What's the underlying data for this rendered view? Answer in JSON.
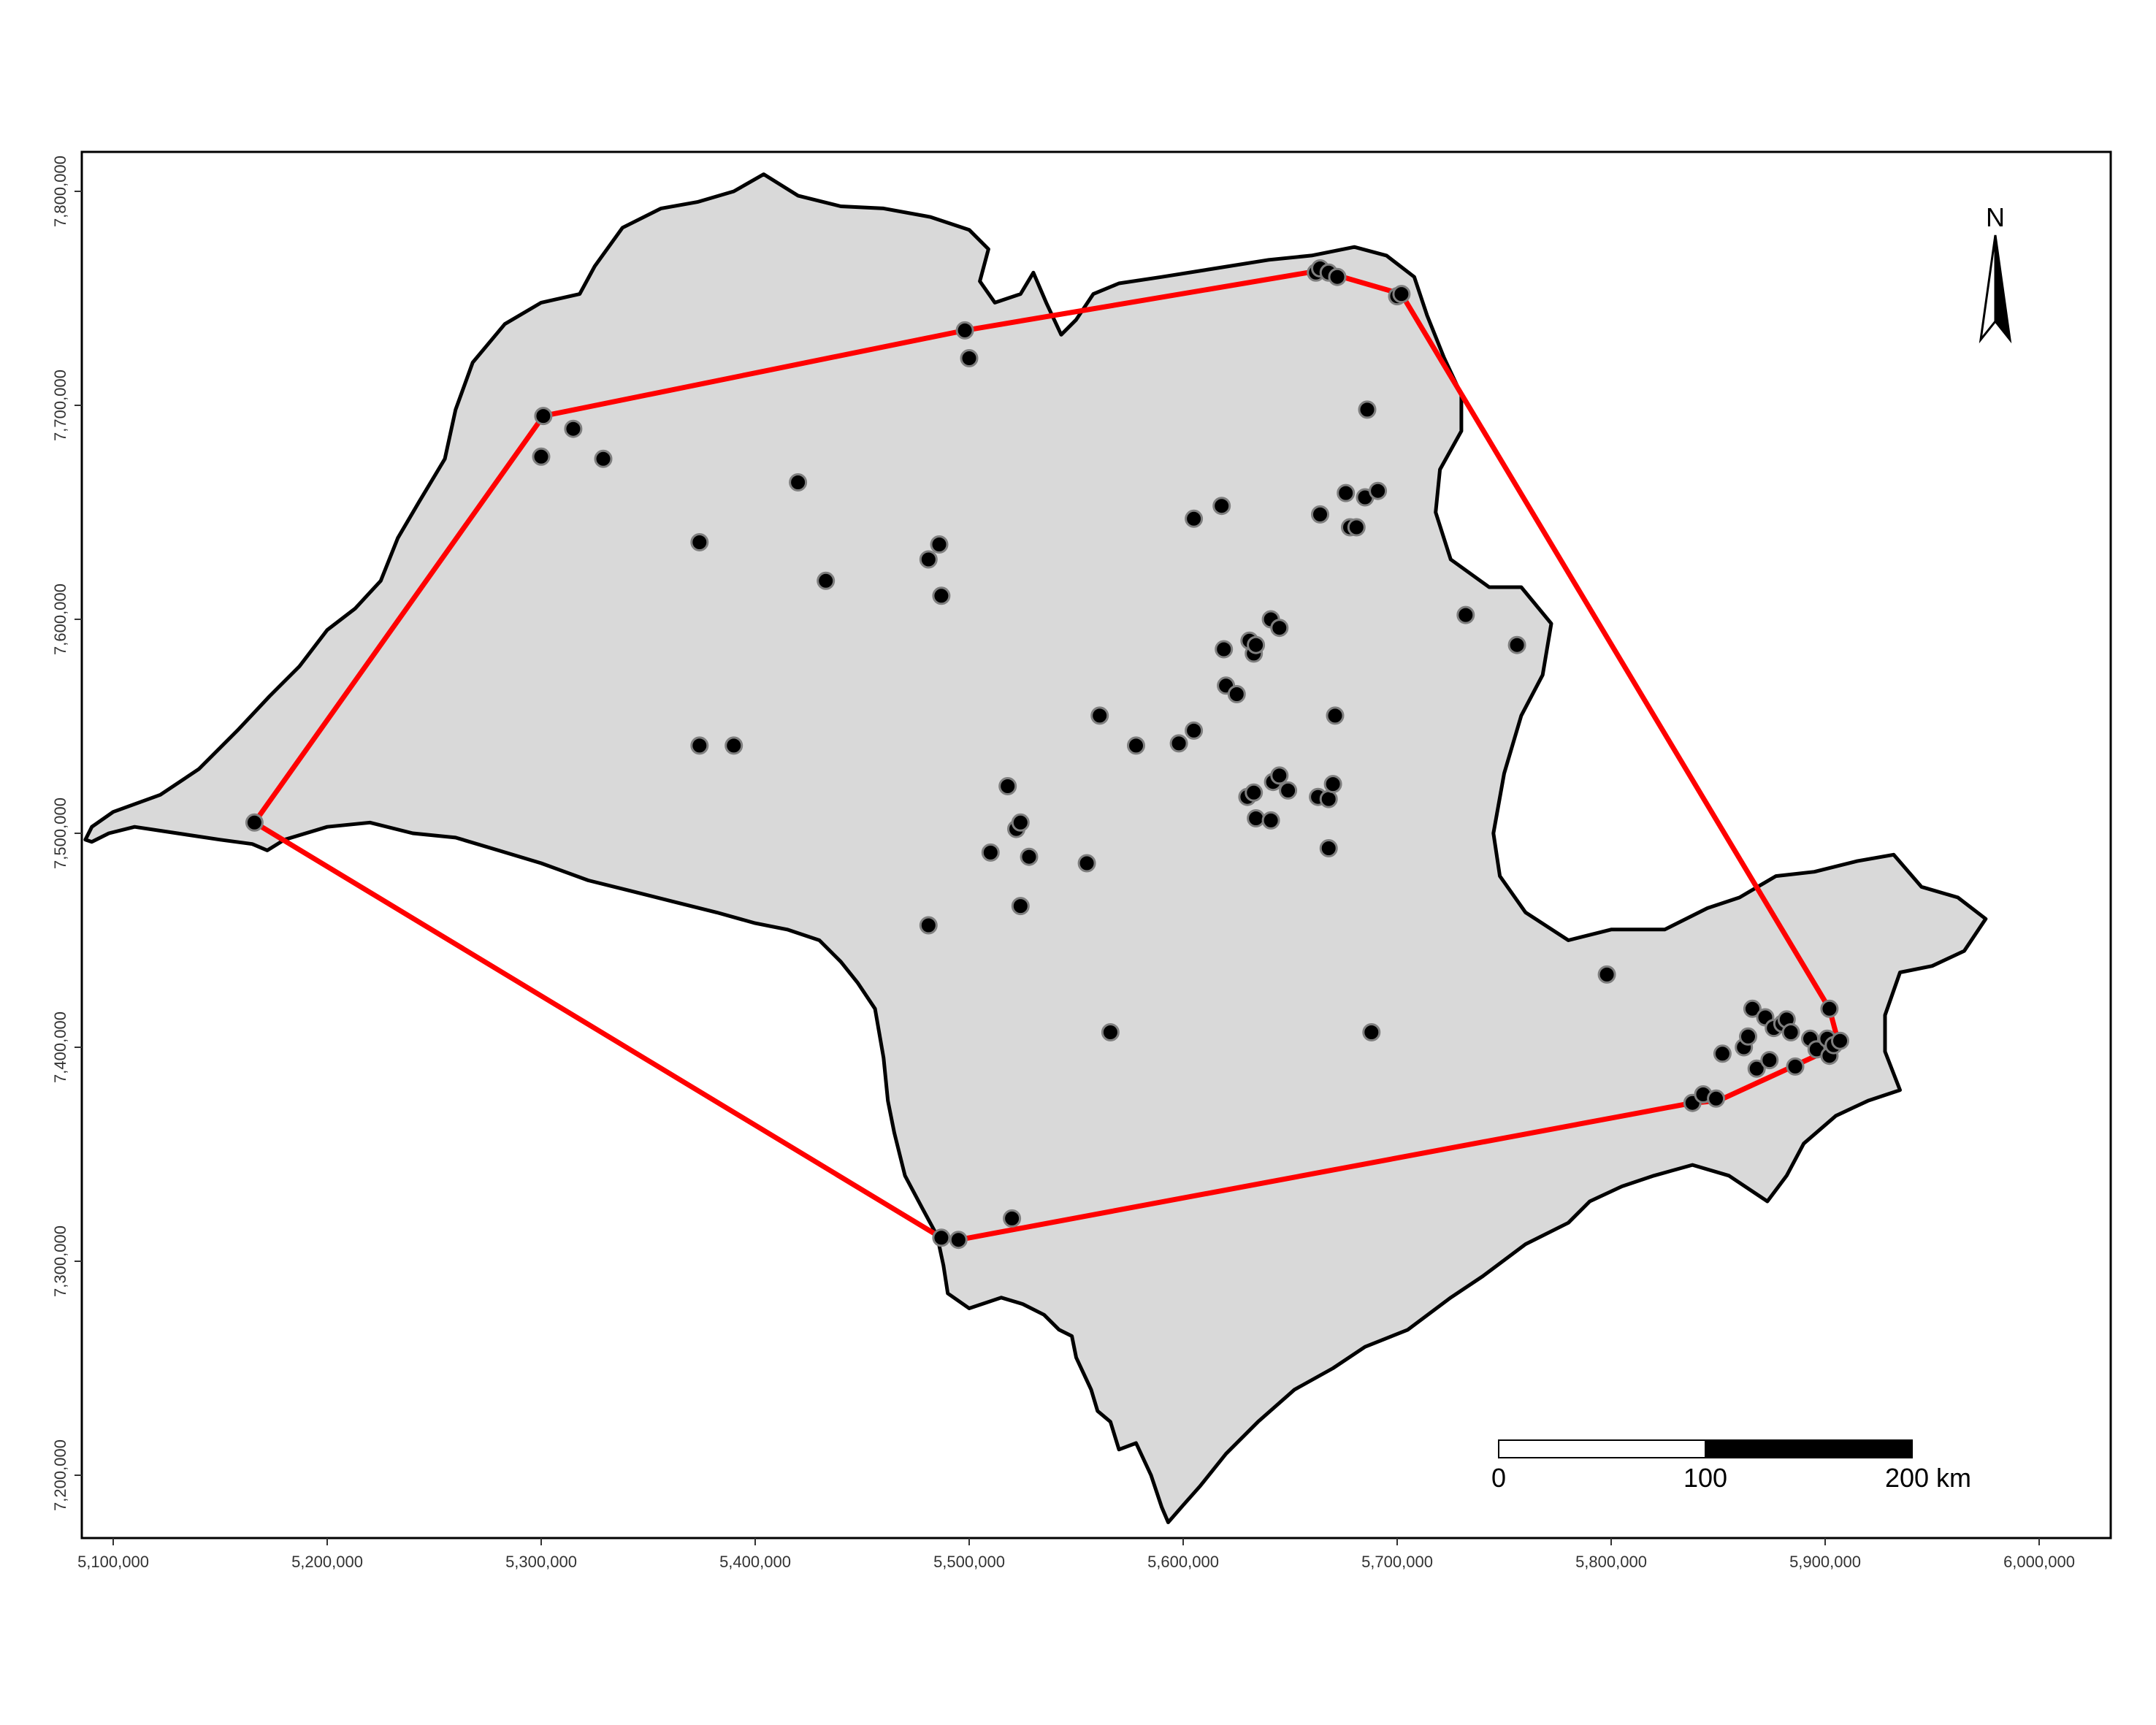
{
  "map": {
    "type": "scatter-map",
    "x_axis": {
      "ticks": [
        5100000,
        5200000,
        5300000,
        5400000,
        5500000,
        5600000,
        5700000,
        5800000,
        5900000,
        6000000
      ],
      "tick_labels": [
        "5,100,000",
        "5,200,000",
        "5,300,000",
        "5,400,000",
        "5,500,000",
        "5,600,000",
        "5,700,000",
        "5,800,000",
        "5,900,000",
        "6,000,000"
      ],
      "range": [
        5080000,
        6025000
      ]
    },
    "y_axis": {
      "ticks": [
        7200000,
        7300000,
        7400000,
        7500000,
        7600000,
        7700000,
        7800000
      ],
      "tick_labels": [
        "7,200,000",
        "7,300,000",
        "7,400,000",
        "7,500,000",
        "7,600,000",
        "7,700,000",
        "7,800,000"
      ],
      "range": [
        7168000,
        7820000
      ]
    },
    "colors": {
      "land_fill": "#d9d9d9",
      "outline": "#000000",
      "hull": "#ff0000",
      "point_fill": "#000000",
      "point_stroke": "#7f7f7f"
    },
    "region_outline": [
      [
        5087000,
        7497000
      ],
      [
        5090000,
        7503000
      ],
      [
        5100000,
        7510000
      ],
      [
        5122000,
        7518000
      ],
      [
        5140000,
        7530000
      ],
      [
        5158000,
        7548000
      ],
      [
        5173000,
        7564000
      ],
      [
        5187000,
        7578000
      ],
      [
        5200000,
        7595000
      ],
      [
        5213000,
        7605000
      ],
      [
        5225000,
        7618000
      ],
      [
        5233000,
        7638000
      ],
      [
        5243000,
        7655000
      ],
      [
        5255000,
        7675000
      ],
      [
        5260000,
        7698000
      ],
      [
        5268000,
        7720000
      ],
      [
        5283000,
        7738000
      ],
      [
        5300000,
        7748000
      ],
      [
        5318000,
        7752000
      ],
      [
        5325000,
        7765000
      ],
      [
        5338000,
        7783000
      ],
      [
        5356000,
        7792000
      ],
      [
        5373000,
        7795000
      ],
      [
        5390000,
        7800000
      ],
      [
        5404000,
        7808000
      ],
      [
        5420000,
        7798000
      ],
      [
        5440000,
        7793000
      ],
      [
        5460000,
        7792000
      ],
      [
        5482000,
        7788000
      ],
      [
        5500000,
        7782000
      ],
      [
        5509000,
        7773000
      ],
      [
        5505000,
        7758000
      ],
      [
        5512000,
        7748000
      ],
      [
        5524000,
        7752000
      ],
      [
        5530000,
        7762000
      ],
      [
        5536000,
        7748000
      ],
      [
        5543000,
        7733000
      ],
      [
        5550000,
        7740000
      ],
      [
        5558000,
        7752000
      ],
      [
        5570000,
        7757000
      ],
      [
        5590000,
        7760000
      ],
      [
        5615000,
        7764000
      ],
      [
        5640000,
        7768000
      ],
      [
        5660000,
        7770000
      ],
      [
        5680000,
        7774000
      ],
      [
        5695000,
        7770000
      ],
      [
        5708000,
        7760000
      ],
      [
        5714000,
        7742000
      ],
      [
        5722000,
        7722000
      ],
      [
        5730000,
        7705000
      ],
      [
        5730000,
        7688000
      ],
      [
        5720000,
        7670000
      ],
      [
        5718000,
        7650000
      ],
      [
        5725000,
        7628000
      ],
      [
        5743000,
        7615000
      ],
      [
        5758000,
        7615000
      ],
      [
        5772000,
        7598000
      ],
      [
        5768000,
        7574000
      ],
      [
        5758000,
        7555000
      ],
      [
        5750000,
        7528000
      ],
      [
        5745000,
        7500000
      ],
      [
        5748000,
        7480000
      ],
      [
        5760000,
        7463000
      ],
      [
        5780000,
        7450000
      ],
      [
        5800000,
        7455000
      ],
      [
        5825000,
        7455000
      ],
      [
        5845000,
        7465000
      ],
      [
        5860000,
        7470000
      ],
      [
        5877000,
        7480000
      ],
      [
        5895000,
        7482000
      ],
      [
        5915000,
        7487000
      ],
      [
        5932000,
        7490000
      ],
      [
        5945000,
        7475000
      ],
      [
        5962000,
        7470000
      ],
      [
        5975000,
        7460000
      ],
      [
        5965000,
        7445000
      ],
      [
        5950000,
        7438000
      ],
      [
        5935000,
        7435000
      ],
      [
        5928000,
        7415000
      ],
      [
        5928000,
        7398000
      ],
      [
        5935000,
        7380000
      ],
      [
        5920000,
        7375000
      ],
      [
        5905000,
        7368000
      ],
      [
        5890000,
        7355000
      ],
      [
        5882000,
        7340000
      ],
      [
        5873000,
        7328000
      ],
      [
        5855000,
        7340000
      ],
      [
        5838000,
        7345000
      ],
      [
        5820000,
        7340000
      ],
      [
        5805000,
        7335000
      ],
      [
        5790000,
        7328000
      ],
      [
        5780000,
        7318000
      ],
      [
        5760000,
        7308000
      ],
      [
        5740000,
        7293000
      ],
      [
        5725000,
        7283000
      ],
      [
        5705000,
        7268000
      ],
      [
        5685000,
        7260000
      ],
      [
        5670000,
        7250000
      ],
      [
        5652000,
        7240000
      ],
      [
        5635000,
        7225000
      ],
      [
        5620000,
        7210000
      ],
      [
        5608000,
        7195000
      ],
      [
        5600000,
        7186000
      ],
      [
        5593000,
        7178000
      ],
      [
        5590000,
        7185000
      ],
      [
        5585000,
        7200000
      ],
      [
        5578000,
        7215000
      ],
      [
        5570000,
        7212000
      ],
      [
        5566000,
        7225000
      ],
      [
        5560000,
        7230000
      ],
      [
        5557000,
        7240000
      ],
      [
        5550000,
        7255000
      ],
      [
        5548000,
        7265000
      ],
      [
        5542000,
        7268000
      ],
      [
        5535000,
        7275000
      ],
      [
        5525000,
        7280000
      ],
      [
        5515000,
        7283000
      ],
      [
        5500000,
        7278000
      ],
      [
        5490000,
        7285000
      ],
      [
        5488000,
        7298000
      ],
      [
        5485000,
        7312000
      ],
      [
        5478000,
        7325000
      ],
      [
        5470000,
        7340000
      ],
      [
        5465000,
        7360000
      ],
      [
        5462000,
        7375000
      ],
      [
        5460000,
        7395000
      ],
      [
        5456000,
        7418000
      ],
      [
        5448000,
        7430000
      ],
      [
        5440000,
        7440000
      ],
      [
        5430000,
        7450000
      ],
      [
        5415000,
        7455000
      ],
      [
        5400000,
        7458000
      ],
      [
        5382000,
        7463000
      ],
      [
        5362000,
        7468000
      ],
      [
        5342000,
        7473000
      ],
      [
        5322000,
        7478000
      ],
      [
        5300000,
        7486000
      ],
      [
        5280000,
        7492000
      ],
      [
        5260000,
        7498000
      ],
      [
        5240000,
        7500000
      ],
      [
        5220000,
        7505000
      ],
      [
        5200000,
        7503000
      ],
      [
        5180000,
        7497000
      ],
      [
        5172000,
        7492000
      ],
      [
        5165000,
        7495000
      ],
      [
        5150000,
        7497000
      ],
      [
        5130000,
        7500000
      ],
      [
        5110000,
        7503000
      ],
      [
        5098000,
        7500000
      ],
      [
        5090000,
        7496000
      ]
    ],
    "hull": [
      [
        5166000,
        7505000
      ],
      [
        5301000,
        7695000
      ],
      [
        5498000,
        7735000
      ],
      [
        5664000,
        7763000
      ],
      [
        5702000,
        7752000
      ],
      [
        5902000,
        7418000
      ],
      [
        5906000,
        7403000
      ],
      [
        5900000,
        7398000
      ],
      [
        5850000,
        7375000
      ],
      [
        5838000,
        7374000
      ],
      [
        5495000,
        7310000
      ],
      [
        5487000,
        7311000
      ],
      [
        5166000,
        7505000
      ]
    ],
    "points": [
      [
        5166,
        7505
      ],
      [
        5301,
        7695
      ],
      [
        5300,
        7676
      ],
      [
        5315,
        7689
      ],
      [
        5329,
        7675
      ],
      [
        5374,
        7636
      ],
      [
        5374,
        7541
      ],
      [
        5390,
        7541
      ],
      [
        5420,
        7664
      ],
      [
        5433,
        7618
      ],
      [
        5481,
        7628
      ],
      [
        5486,
        7635
      ],
      [
        5487,
        7611
      ],
      [
        5498,
        7735
      ],
      [
        5500,
        7722
      ],
      [
        5481,
        7457
      ],
      [
        5487,
        7311
      ],
      [
        5495,
        7310
      ],
      [
        5520,
        7320
      ],
      [
        5510,
        7491
      ],
      [
        5518,
        7522
      ],
      [
        5522,
        7502
      ],
      [
        5524,
        7505
      ],
      [
        5528,
        7489
      ],
      [
        5524,
        7466
      ],
      [
        5555,
        7486
      ],
      [
        5561,
        7555
      ],
      [
        5566,
        7407
      ],
      [
        5578,
        7541
      ],
      [
        5598,
        7542
      ],
      [
        5605,
        7548
      ],
      [
        5605,
        7647
      ],
      [
        5618,
        7653
      ],
      [
        5619,
        7586
      ],
      [
        5620,
        7569
      ],
      [
        5625,
        7565
      ],
      [
        5630,
        7517
      ],
      [
        5631,
        7590
      ],
      [
        5633,
        7584
      ],
      [
        5634,
        7588
      ],
      [
        5633,
        7519
      ],
      [
        5634,
        7507
      ],
      [
        5641,
        7600
      ],
      [
        5641,
        7506
      ],
      [
        5642,
        7524
      ],
      [
        5645,
        7596
      ],
      [
        5645,
        7527
      ],
      [
        5649,
        7520
      ],
      [
        5662,
        7762
      ],
      [
        5664,
        7764
      ],
      [
        5668,
        7762
      ],
      [
        5672,
        7760
      ],
      [
        5663,
        7517
      ],
      [
        5664,
        7649
      ],
      [
        5668,
        7516
      ],
      [
        5668,
        7493
      ],
      [
        5670,
        7523
      ],
      [
        5671,
        7555
      ],
      [
        5676,
        7659
      ],
      [
        5678,
        7643
      ],
      [
        5681,
        7643
      ],
      [
        5685,
        7657
      ],
      [
        5686,
        7698
      ],
      [
        5688,
        7407
      ],
      [
        5691,
        7660
      ],
      [
        5700,
        7751
      ],
      [
        5702,
        7752
      ],
      [
        5732,
        7602
      ],
      [
        5756,
        7588
      ],
      [
        5798,
        7434
      ],
      [
        5838,
        7374
      ],
      [
        5843,
        7378
      ],
      [
        5849,
        7376
      ],
      [
        5852,
        7397
      ],
      [
        5862,
        7400
      ],
      [
        5864,
        7405
      ],
      [
        5866,
        7418
      ],
      [
        5868,
        7390
      ],
      [
        5872,
        7414
      ],
      [
        5874,
        7394
      ],
      [
        5876,
        7409
      ],
      [
        5880,
        7411
      ],
      [
        5882,
        7413
      ],
      [
        5884,
        7407
      ],
      [
        5886,
        7391
      ],
      [
        5893,
        7404
      ],
      [
        5896,
        7399
      ],
      [
        5901,
        7404
      ],
      [
        5902,
        7418
      ],
      [
        5902,
        7396
      ],
      [
        5904,
        7401
      ],
      [
        5907,
        7403
      ]
    ],
    "scale_bar": {
      "labels": [
        "0",
        "100",
        "200 km"
      ]
    },
    "north_arrow": {
      "label": "N"
    }
  }
}
